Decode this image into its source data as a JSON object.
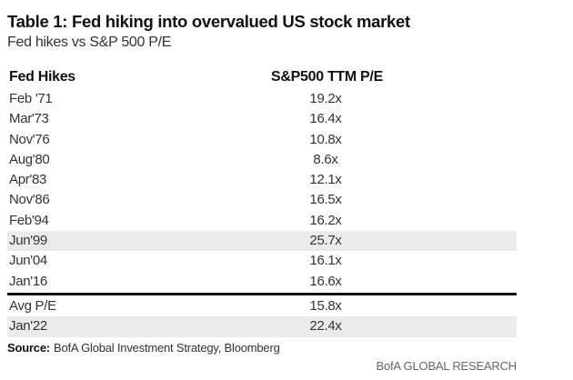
{
  "title": "Table 1: Fed hiking into overvalued US stock market",
  "subtitle": "Fed hikes vs S&P 500 P/E",
  "table": {
    "headers": [
      "Fed Hikes",
      "S&P500 TTM P/E"
    ],
    "rows": [
      {
        "date": "Feb '71",
        "pe": "19.2x",
        "shaded": false
      },
      {
        "date": "Mar'73",
        "pe": "16.4x",
        "shaded": false
      },
      {
        "date": "Nov'76",
        "pe": "10.8x",
        "shaded": false
      },
      {
        "date": "Aug'80",
        "pe": "8.6x",
        "shaded": false
      },
      {
        "date": "Apr'83",
        "pe": "12.1x",
        "shaded": false
      },
      {
        "date": "Nov'86",
        "pe": "16.5x",
        "shaded": false
      },
      {
        "date": "Feb'94",
        "pe": "16.2x",
        "shaded": false
      },
      {
        "date": "Jun'99",
        "pe": "25.7x",
        "shaded": true
      },
      {
        "date": "Jun'04",
        "pe": "16.1x",
        "shaded": false
      },
      {
        "date": "Jan'16",
        "pe": "16.6x",
        "shaded": false
      }
    ],
    "summary_rows": [
      {
        "date": "Avg P/E",
        "pe": "15.8x",
        "shaded": false
      },
      {
        "date": "Jan'22",
        "pe": "22.4x",
        "shaded": true
      }
    ]
  },
  "source": {
    "label": "Source:",
    "text": "BofA Global Investment Strategy, Bloomberg"
  },
  "brand": "BofA GLOBAL RESEARCH",
  "colors": {
    "shade": "#ebebeb",
    "divider": "#111111"
  }
}
